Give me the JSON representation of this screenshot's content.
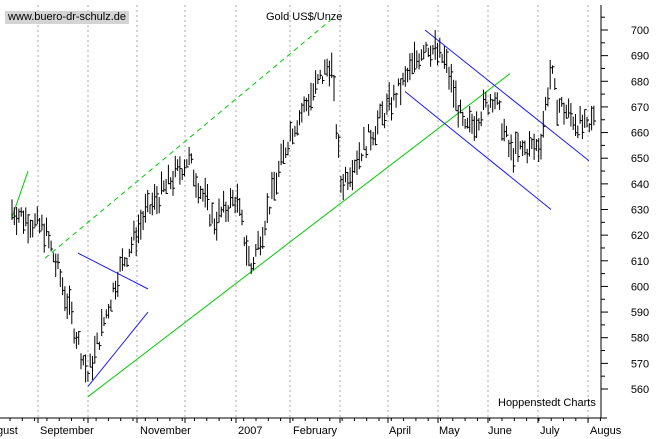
{
  "watermark": "www.buero-dr-schulz.de",
  "chart_data": {
    "type": "ohlc",
    "title": "Gold US$/Unze",
    "source": "Hoppenstedt Charts",
    "y_ticks": [
      560,
      570,
      580,
      590,
      600,
      610,
      620,
      630,
      640,
      650,
      660,
      670,
      680,
      690,
      700
    ],
    "ylim": [
      550,
      706
    ],
    "x_labels": [
      "gust",
      "September",
      "November",
      "2007",
      "February",
      "April",
      "May",
      "June",
      "July",
      "Augus"
    ],
    "month_dividers": 13,
    "grid": {
      "vertical": "dotted"
    },
    "colors": {
      "price_bars": "#000000",
      "uptrend_channel": "#00cc00",
      "downtrend_channel": "#1a1aff",
      "axes": "#000000",
      "grid": "#aaaaaa"
    },
    "series_approx": [
      {
        "date": "2006-08",
        "value": 630
      },
      {
        "date": "2006-09-start",
        "value": 622
      },
      {
        "date": "2006-09-mid",
        "value": 600
      },
      {
        "date": "2006-10-early",
        "value": 565
      },
      {
        "date": "2006-10-late",
        "value": 605
      },
      {
        "date": "2006-11",
        "value": 628
      },
      {
        "date": "2006-12-early",
        "value": 650
      },
      {
        "date": "2006-12-mid",
        "value": 625
      },
      {
        "date": "2007-01-early",
        "value": 635
      },
      {
        "date": "2007-01-mid",
        "value": 607
      },
      {
        "date": "2007-02-early",
        "value": 660
      },
      {
        "date": "2007-02-late",
        "value": 688
      },
      {
        "date": "2007-03-early",
        "value": 640
      },
      {
        "date": "2007-03-late",
        "value": 660
      },
      {
        "date": "2007-04-early",
        "value": 680
      },
      {
        "date": "2007-04-late",
        "value": 695
      },
      {
        "date": "2007-05-early",
        "value": 688
      },
      {
        "date": "2007-05-mid",
        "value": 660
      },
      {
        "date": "2007-06-early",
        "value": 675
      },
      {
        "date": "2007-06-mid",
        "value": 652
      },
      {
        "date": "2007-07-early",
        "value": 655
      },
      {
        "date": "2007-07-mid",
        "value": 672
      },
      {
        "date": "2007-07-late",
        "value": 685
      },
      {
        "date": "2007-08-early",
        "value": 660
      },
      {
        "date": "2007-08-end",
        "value": 668
      }
    ],
    "trendlines": [
      {
        "name": "long-term-uptrend-support",
        "style": "solid",
        "color": "green",
        "from": {
          "date": "2006-10-early",
          "value": 557
        },
        "to": {
          "date": "2007-06-mid",
          "value": 683
        }
      },
      {
        "name": "long-term-uptrend-resistance",
        "style": "dashed",
        "color": "green",
        "from": {
          "date": "2006-09-start",
          "value": 611
        },
        "to": {
          "date": "2007-02-late",
          "value": 704
        }
      },
      {
        "name": "short-term-green",
        "style": "solid",
        "color": "green",
        "from": {
          "date": "2006-08",
          "value": 627
        },
        "to": {
          "date": "2006-08-late",
          "value": 645
        }
      },
      {
        "name": "downtrend-upper",
        "style": "solid",
        "color": "blue",
        "from": {
          "date": "2007-04-late",
          "value": 700
        },
        "to": {
          "date": "2007-08-early",
          "value": 649
        }
      },
      {
        "name": "downtrend-lower",
        "style": "solid",
        "color": "blue",
        "from": {
          "date": "2007-04-early",
          "value": 676
        },
        "to": {
          "date": "2007-07-late",
          "value": 630
        }
      },
      {
        "name": "sep-triangle-upper",
        "style": "solid",
        "color": "blue",
        "from": {
          "date": "2006-09-late",
          "value": 613
        },
        "to": {
          "date": "2006-11-early",
          "value": 599
        }
      },
      {
        "name": "oct-triangle-lower",
        "style": "solid",
        "color": "blue",
        "from": {
          "date": "2006-10-early",
          "value": 561
        },
        "to": {
          "date": "2006-11-early",
          "value": 590
        }
      }
    ]
  }
}
